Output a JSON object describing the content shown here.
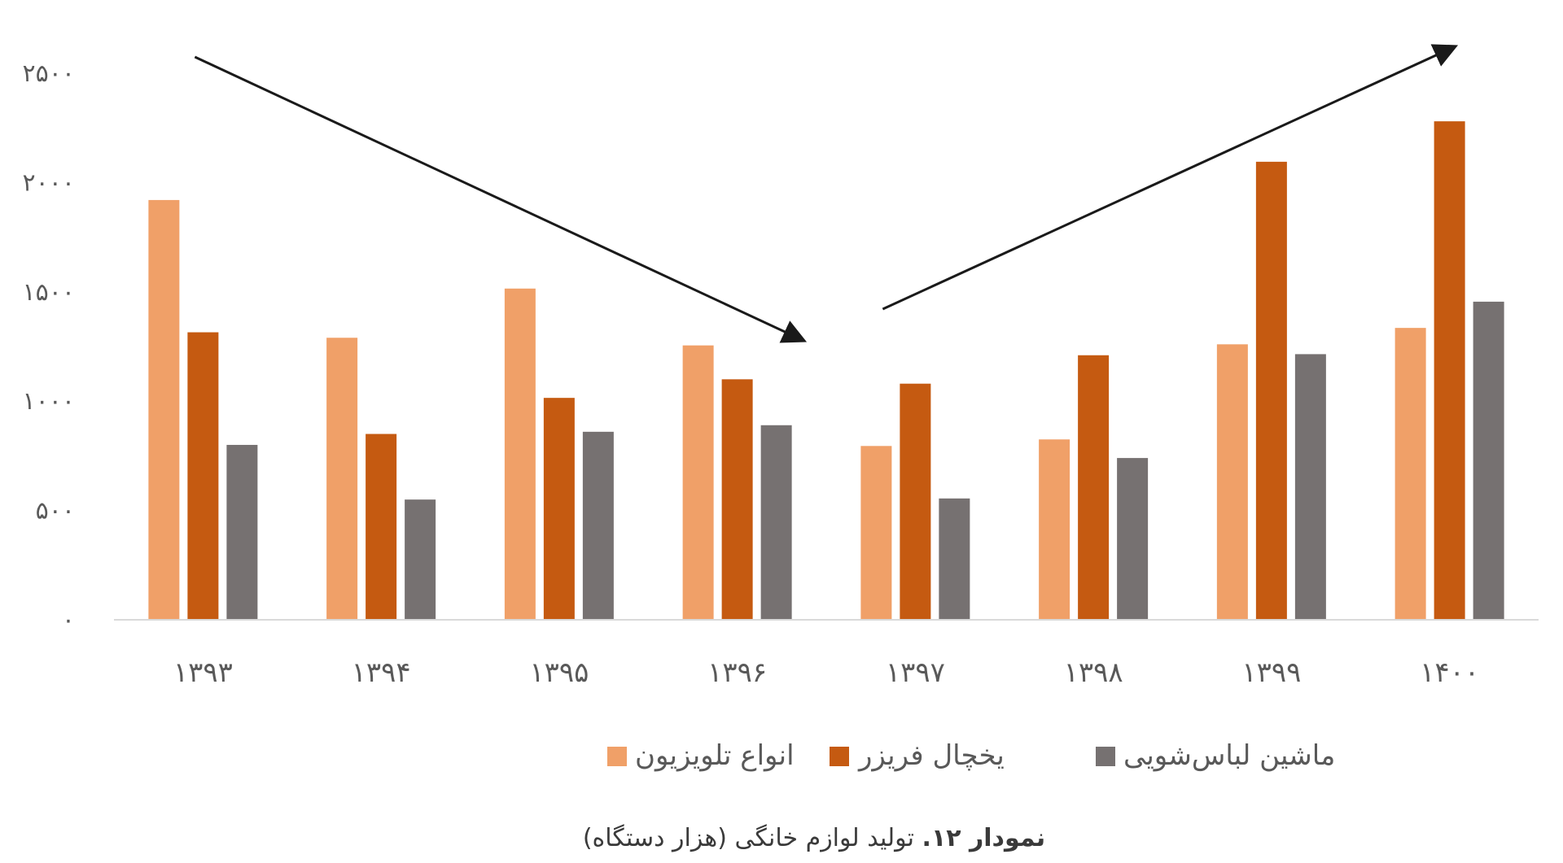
{
  "chart_data": {
    "type": "bar",
    "categories": [
      "۱۳۹۳",
      "۱۳۹۴",
      "۱۳۹۵",
      "۱۳۹۶",
      "۱۳۹۷",
      "۱۳۹۸",
      "۱۳۹۹",
      "۱۴۰۰"
    ],
    "series": [
      {
        "name": "انواع تلویزیون",
        "color": "#f0a068",
        "values": [
          1920,
          1290,
          1515,
          1255,
          795,
          825,
          1260,
          1335
        ]
      },
      {
        "name": "یخچال فریزر",
        "color": "#c55a11",
        "values": [
          1315,
          850,
          1015,
          1100,
          1080,
          1210,
          2095,
          2280
        ]
      },
      {
        "name": "ماشین لباس‌شویی",
        "color": "#767171",
        "values": [
          800,
          550,
          860,
          890,
          555,
          740,
          1215,
          1455
        ]
      }
    ],
    "yticks": [
      {
        "value": 0,
        "label": "۰"
      },
      {
        "value": 500,
        "label": "۵۰۰"
      },
      {
        "value": 1000,
        "label": "۱۰۰۰"
      },
      {
        "value": 1500,
        "label": "۱۵۰۰"
      },
      {
        "value": 2000,
        "label": "۲۰۰۰"
      },
      {
        "value": 2500,
        "label": "۲۵۰۰"
      }
    ],
    "ylim": [
      0,
      2500
    ],
    "grid": false,
    "legend_position": "bottom",
    "annotations": [
      {
        "type": "trend-arrow",
        "from": "۱۳۹۳",
        "to": "۱۳۹۶",
        "direction": "down"
      },
      {
        "type": "trend-arrow",
        "from": "۱۳۹۷",
        "to": "۱۴۰۰",
        "direction": "up"
      }
    ],
    "caption": {
      "bold": "نمودار ۱۲.",
      "text": " تولید لوازم خانگی (هزار دستگاه)"
    }
  },
  "colors": {
    "axis": "#d9d9d9",
    "arrow": "#1a1a1a"
  }
}
